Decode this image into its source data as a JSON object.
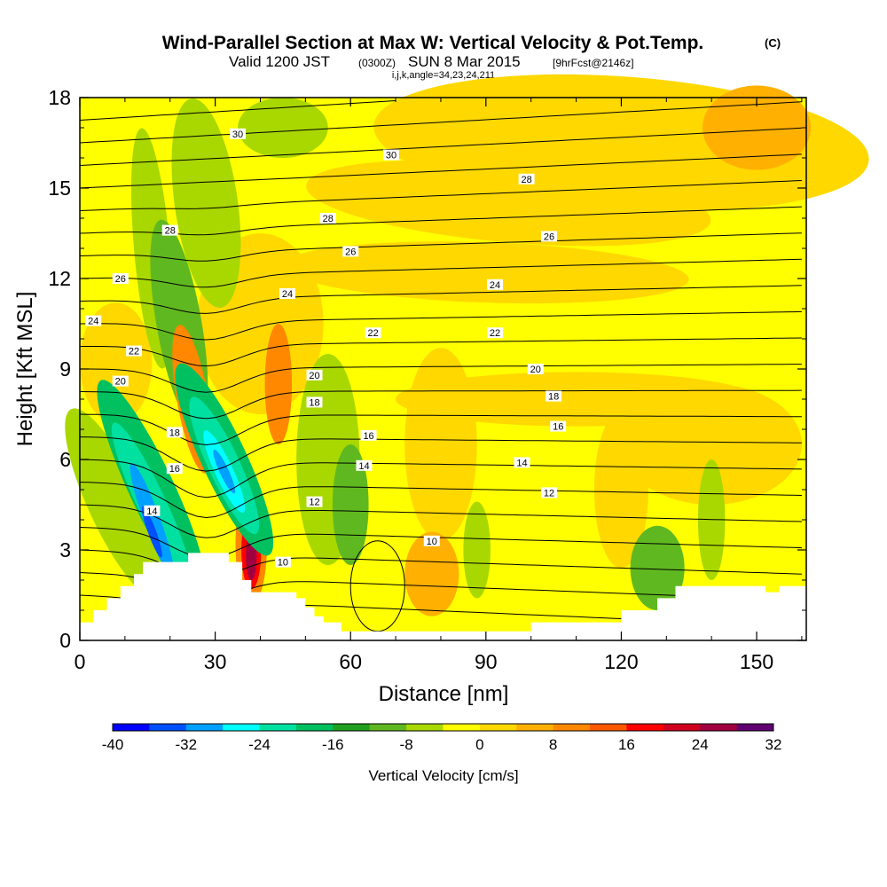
{
  "title": {
    "main": "Wind-Parallel Section at Max W: Vertical Velocity & Pot.Temp.",
    "main_suffix": "(C)",
    "line2_a": "Valid 1200 JST",
    "line2_b": "(0300Z)",
    "line2_c": "SUN 8 Mar 2015",
    "line2_d": "[9hrFcst@2146z]",
    "line3": "i,j,k,angle=34,23,24,211"
  },
  "chart_data": {
    "type": "heatmap",
    "title": "Wind-Parallel Section at Max W: Vertical Velocity & Pot.Temp.",
    "xlabel": "Distance [nm]",
    "ylabel": "Height [Kft MSL]",
    "xlim": [
      0,
      161
    ],
    "ylim": [
      0,
      18
    ],
    "x_ticks": [
      "0",
      "30",
      "60",
      "90",
      "120",
      "150"
    ],
    "y_ticks": [
      "0",
      "3",
      "6",
      "9",
      "12",
      "15",
      "18"
    ],
    "colorbar": {
      "title": "Vertical Velocity [cm/s]",
      "labels": [
        "-40",
        "-32",
        "-24",
        "-16",
        "-8",
        "0",
        "8",
        "16",
        "24",
        "32"
      ],
      "colors": [
        "#0000ff",
        "#0050ff",
        "#00a0ff",
        "#00ffff",
        "#00e0a0",
        "#00c060",
        "#20a020",
        "#60b820",
        "#a8d800",
        "#ffff00",
        "#ffd800",
        "#ffb000",
        "#ff8800",
        "#ff5800",
        "#ff0000",
        "#d00020",
        "#a00040",
        "#600070"
      ]
    },
    "contour_field": "Potential Temperature [C]",
    "contour_labels": [
      {
        "text": "30",
        "x": 35,
        "y": 16.8
      },
      {
        "text": "30",
        "x": 69,
        "y": 16.1
      },
      {
        "text": "28",
        "x": 99,
        "y": 15.3
      },
      {
        "text": "28",
        "x": 20,
        "y": 13.6
      },
      {
        "text": "28",
        "x": 55,
        "y": 14.0
      },
      {
        "text": "26",
        "x": 104,
        "y": 13.4
      },
      {
        "text": "26",
        "x": 60,
        "y": 12.9
      },
      {
        "text": "26",
        "x": 9,
        "y": 12.0
      },
      {
        "text": "24",
        "x": 46,
        "y": 11.5
      },
      {
        "text": "24",
        "x": 92,
        "y": 11.8
      },
      {
        "text": "24",
        "x": 3,
        "y": 10.6
      },
      {
        "text": "22",
        "x": 12,
        "y": 9.6
      },
      {
        "text": "22",
        "x": 65,
        "y": 10.2
      },
      {
        "text": "22",
        "x": 92,
        "y": 10.2
      },
      {
        "text": "20",
        "x": 9,
        "y": 8.6
      },
      {
        "text": "20",
        "x": 52,
        "y": 8.8
      },
      {
        "text": "20",
        "x": 101,
        "y": 9.0
      },
      {
        "text": "18",
        "x": 21,
        "y": 6.9
      },
      {
        "text": "18",
        "x": 52,
        "y": 7.9
      },
      {
        "text": "18",
        "x": 105,
        "y": 8.1
      },
      {
        "text": "16",
        "x": 21,
        "y": 5.7
      },
      {
        "text": "16",
        "x": 64,
        "y": 6.8
      },
      {
        "text": "16",
        "x": 106,
        "y": 7.1
      },
      {
        "text": "14",
        "x": 16,
        "y": 4.3
      },
      {
        "text": "14",
        "x": 63,
        "y": 5.8
      },
      {
        "text": "14",
        "x": 98,
        "y": 5.9
      },
      {
        "text": "12",
        "x": 52,
        "y": 4.6
      },
      {
        "text": "12",
        "x": 104,
        "y": 4.9
      },
      {
        "text": "10",
        "x": 78,
        "y": 3.3
      },
      {
        "text": "10",
        "x": 45,
        "y": 2.6
      }
    ],
    "terrain_profile_kft": [
      [
        0,
        0.6
      ],
      [
        3,
        0.6
      ],
      [
        3,
        1.0
      ],
      [
        6,
        1.0
      ],
      [
        6,
        1.4
      ],
      [
        9,
        1.4
      ],
      [
        9,
        1.8
      ],
      [
        12,
        1.8
      ],
      [
        12,
        2.2
      ],
      [
        14,
        2.2
      ],
      [
        14,
        2.6
      ],
      [
        17,
        2.6
      ],
      [
        17,
        2.6
      ],
      [
        24,
        2.6
      ],
      [
        24,
        2.9
      ],
      [
        33,
        2.9
      ],
      [
        33,
        2.6
      ],
      [
        36,
        2.6
      ],
      [
        36,
        2.0
      ],
      [
        38,
        2.0
      ],
      [
        38,
        1.6
      ],
      [
        45,
        1.6
      ],
      [
        45,
        1.6
      ],
      [
        48,
        1.6
      ],
      [
        48,
        1.4
      ],
      [
        50,
        1.4
      ],
      [
        50,
        1.1
      ],
      [
        52,
        1.1
      ],
      [
        52,
        0.8
      ],
      [
        54,
        0.8
      ],
      [
        54,
        0.6
      ],
      [
        58,
        0.6
      ],
      [
        58,
        0.3
      ],
      [
        90,
        0.3
      ],
      [
        90,
        0.3
      ],
      [
        92,
        0.3
      ],
      [
        92,
        0.3
      ],
      [
        100,
        0.3
      ],
      [
        100,
        0.6
      ],
      [
        115,
        0.6
      ],
      [
        115,
        0.6
      ],
      [
        120,
        0.6
      ],
      [
        120,
        1.0
      ],
      [
        128,
        1.0
      ],
      [
        128,
        1.4
      ],
      [
        132,
        1.4
      ],
      [
        132,
        1.8
      ],
      [
        138,
        1.8
      ],
      [
        138,
        1.8
      ],
      [
        152,
        1.8
      ],
      [
        152,
        1.6
      ],
      [
        155,
        1.6
      ],
      [
        155,
        1.8
      ],
      [
        161,
        1.8
      ]
    ]
  },
  "colors": {
    "background": "#ffffff",
    "field_base": "#ffff00",
    "terrain": "#ffffff"
  }
}
